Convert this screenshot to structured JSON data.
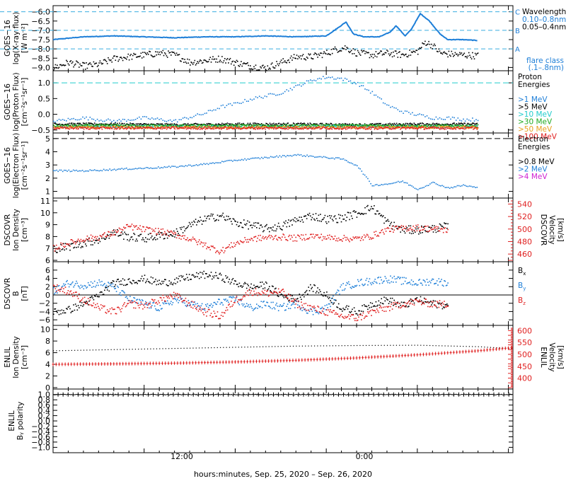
{
  "colors": {
    "frame": "#000000",
    "blue": "#1e7fd8",
    "lightblue": "#3aaee0",
    "cyan": "#22cccc",
    "green": "#22aa22",
    "orange": "#e8a020",
    "red": "#e02020",
    "magenta": "#d020d0",
    "black": "#000000"
  },
  "xaxis": {
    "tick_labels": [
      "12:00",
      "0:00"
    ],
    "title": "hours:minutes, Sep. 25, 2020 – Sep. 26, 2020"
  },
  "chart_data": [
    {
      "type": "line",
      "id": "goes-xray",
      "ylabel": [
        "GOES−16",
        "log(X-ray flux)",
        "[W m⁻²]"
      ],
      "ylim": [
        -9.1,
        -5.9
      ],
      "yticks": [
        -9.0,
        -8.5,
        -8.0,
        -7.5,
        -7.0,
        -6.5,
        -6.0
      ],
      "ytick_labels": [
        "−9.0",
        "−8.5",
        "−8.0",
        "−7.5",
        "−7.0",
        "−6.5",
        "−6.0"
      ],
      "flare_levels": [
        {
          "label": "C",
          "value": -6.0
        },
        {
          "label": "B",
          "value": -7.0
        },
        {
          "label": "A",
          "value": -8.0
        }
      ],
      "legend": {
        "title": "Wavelength",
        "entries": [
          {
            "label": "0.10–0.8nm",
            "color": "blue"
          },
          {
            "label": "0.05–0.4nm",
            "color": "black"
          }
        ],
        "note": [
          "flare class",
          "(.1–.8nm)"
        ]
      },
      "series": [
        {
          "name": "0.10–0.8nm",
          "color": "blue",
          "x": [
            0,
            2,
            4,
            6,
            8,
            10,
            12,
            14,
            16,
            18,
            18.8,
            19.3,
            19.8,
            20.5,
            21.5,
            22.2,
            22.6,
            23.2,
            23.6,
            24.2,
            24.8,
            25.5,
            26,
            27,
            28
          ],
          "y": [
            -7.5,
            -7.35,
            -7.3,
            -7.35,
            -7.4,
            -7.35,
            -7.35,
            -7.3,
            -7.35,
            -7.3,
            -6.85,
            -6.55,
            -7.2,
            -7.35,
            -7.35,
            -7.1,
            -6.75,
            -7.3,
            -6.95,
            -6.1,
            -6.5,
            -7.2,
            -7.5,
            -7.5,
            -7.55
          ]
        },
        {
          "name": "0.05–0.4nm",
          "color": "black",
          "x": [
            0,
            1,
            2,
            3,
            4,
            5,
            6,
            7,
            8,
            9,
            10,
            11,
            12,
            13,
            14,
            15,
            16,
            17,
            18,
            18.6,
            19.2,
            20,
            21,
            22,
            23,
            24,
            24.5,
            25,
            25.5,
            26,
            27,
            28
          ],
          "y": [
            -9.0,
            -8.7,
            -8.9,
            -8.8,
            -8.5,
            -8.4,
            -8.3,
            -8.2,
            -8.3,
            -8.7,
            -8.6,
            -8.5,
            -8.7,
            -8.9,
            -9.0,
            -8.7,
            -8.4,
            -8.4,
            -8.2,
            -8.0,
            -7.9,
            -8.2,
            -8.3,
            -8.2,
            -8.3,
            -8.1,
            -7.6,
            -7.8,
            -8.2,
            -8.25,
            -8.3,
            -8.35
          ]
        }
      ]
    },
    {
      "type": "scatter",
      "id": "goes-proton",
      "ylabel": [
        "GOES−16",
        "log(Proton Flux)",
        "[cm⁻²s⁻¹sr⁻¹]"
      ],
      "ylim": [
        -0.55,
        1.25
      ],
      "yticks": [
        -0.5,
        0.0,
        0.5,
        1.0
      ],
      "ytick_labels": [
        "−0.5",
        "0.0",
        "0.5",
        "1.0"
      ],
      "reference_line": 1.0,
      "legend": {
        "title": [
          "Proton",
          "Energies"
        ],
        "entries": [
          {
            "label": ">1 MeV",
            "color": "blue"
          },
          {
            "label": ">5 MeV",
            "color": "black"
          },
          {
            "label": ">10 MeV",
            "color": "cyan"
          },
          {
            "label": ">30 MeV",
            "color": "green"
          },
          {
            "label": ">50 MeV",
            "color": "orange"
          },
          {
            "label": ">100 MeV",
            "color": "red"
          }
        ]
      },
      "series": [
        {
          "name": ">1 MeV",
          "color": "blue",
          "x": [
            0,
            2,
            4,
            6,
            8,
            10,
            11,
            12,
            13,
            14,
            15,
            16,
            17,
            18,
            19,
            20,
            21,
            22,
            23,
            24,
            25,
            26,
            27,
            28
          ],
          "y": [
            -0.2,
            -0.1,
            -0.2,
            -0.1,
            -0.2,
            0.05,
            0.25,
            0.35,
            0.5,
            0.6,
            0.7,
            0.9,
            1.1,
            1.2,
            1.15,
            1.0,
            0.7,
            0.3,
            0.1,
            0.0,
            -0.1,
            -0.1,
            -0.15,
            -0.15
          ]
        },
        {
          "name": ">5 MeV",
          "color": "black",
          "x": [
            0,
            4,
            8,
            12,
            16,
            20,
            24,
            28
          ],
          "y": [
            -0.3,
            -0.3,
            -0.32,
            -0.3,
            -0.3,
            -0.32,
            -0.3,
            -0.3
          ]
        },
        {
          "name": ">10 MeV",
          "color": "cyan",
          "x": [
            0,
            4,
            8,
            12,
            16,
            20,
            24,
            28
          ],
          "y": [
            -0.38,
            -0.38,
            -0.36,
            -0.38,
            -0.38,
            -0.36,
            -0.38,
            -0.38
          ]
        },
        {
          "name": ">30 MeV",
          "color": "green",
          "x": [
            0,
            4,
            8,
            12,
            16,
            20,
            24,
            28
          ],
          "y": [
            -0.35,
            -0.34,
            -0.35,
            -0.34,
            -0.35,
            -0.34,
            -0.35,
            -0.35
          ]
        },
        {
          "name": ">50 MeV",
          "color": "orange",
          "x": [
            0,
            4,
            8,
            12,
            16,
            20,
            24,
            28
          ],
          "y": [
            -0.4,
            -0.4,
            -0.4,
            -0.4,
            -0.4,
            -0.4,
            -0.4,
            -0.4
          ]
        },
        {
          "name": ">100 MeV",
          "color": "red",
          "x": [
            0,
            4,
            8,
            12,
            16,
            20,
            24,
            28
          ],
          "y": [
            -0.42,
            -0.42,
            -0.42,
            -0.42,
            -0.42,
            -0.42,
            -0.42,
            -0.42
          ]
        }
      ]
    },
    {
      "type": "scatter",
      "id": "goes-electron",
      "ylabel": [
        "GOES−16",
        "log(Electron Flux)",
        "[cm⁻²s⁻¹sr⁻¹]"
      ],
      "ylim": [
        0.6,
        5.1
      ],
      "yticks": [
        1,
        2,
        3,
        4,
        5
      ],
      "ytick_labels": [
        "1",
        "2",
        "3",
        "4",
        "5"
      ],
      "reference_line": 5.0,
      "legend": {
        "title": [
          "Electron",
          "Energies"
        ],
        "entries": [
          {
            "label": ">0.8 MeV",
            "color": "black"
          },
          {
            "label": ">2 MeV",
            "color": "blue"
          },
          {
            "label": ">4 MeV",
            "color": "magenta"
          }
        ]
      },
      "series": [
        {
          "name": ">2 MeV",
          "color": "blue",
          "x": [
            0,
            2,
            4,
            6,
            8,
            10,
            12,
            14,
            16,
            18,
            19,
            20,
            21,
            22,
            23,
            24,
            25,
            26,
            27,
            28
          ],
          "y": [
            2.6,
            2.6,
            2.7,
            2.8,
            2.9,
            3.1,
            3.4,
            3.6,
            3.8,
            3.6,
            3.5,
            3.0,
            1.5,
            1.6,
            1.8,
            1.2,
            1.7,
            1.3,
            1.5,
            1.3
          ]
        }
      ]
    },
    {
      "type": "scatter",
      "id": "dscovr-plasma",
      "ylabel": [
        "DSCOVR",
        "Ion Density",
        "[cm⁻³]"
      ],
      "ylabel_right": [
        "DSCOVR",
        "Velocity",
        "[km/s]"
      ],
      "ylim": [
        6,
        11
      ],
      "yticks": [
        6,
        7,
        8,
        9,
        10,
        11
      ],
      "ytick_labels": [
        "6",
        "7",
        "8",
        "9",
        "10",
        "11"
      ],
      "ylim_right": [
        450,
        545
      ],
      "yticks_right": [
        460,
        480,
        500,
        520,
        540
      ],
      "ytick_labels_right": [
        "460",
        "480",
        "500",
        "520",
        "540"
      ],
      "series": [
        {
          "name": "density",
          "color": "black",
          "axis": "left",
          "x": [
            0,
            1,
            2,
            3,
            4,
            5,
            6,
            7,
            8,
            9,
            10,
            11,
            12,
            13,
            14,
            15,
            16,
            17,
            18,
            19,
            20,
            21,
            22,
            23,
            24,
            25,
            26
          ],
          "y": [
            7.0,
            7.2,
            7.5,
            7.8,
            8.4,
            8.0,
            7.9,
            8.1,
            8.3,
            9.0,
            9.5,
            9.8,
            9.2,
            9.0,
            8.7,
            8.9,
            9.4,
            9.8,
            9.5,
            9.6,
            10.0,
            10.5,
            9.2,
            8.6,
            8.6,
            8.7,
            8.9
          ]
        },
        {
          "name": "velocity",
          "color": "red",
          "axis": "right",
          "x": [
            0,
            1,
            2,
            3,
            4,
            5,
            6,
            7,
            8,
            9,
            10,
            11,
            12,
            13,
            14,
            15,
            16,
            17,
            18,
            19,
            20,
            21,
            22,
            23,
            24,
            25,
            26
          ],
          "y": [
            470,
            478,
            485,
            488,
            495,
            505,
            500,
            497,
            492,
            485,
            475,
            465,
            478,
            485,
            487,
            488,
            486,
            490,
            487,
            486,
            485,
            490,
            500,
            502,
            503,
            501,
            499
          ]
        }
      ]
    },
    {
      "type": "scatter",
      "id": "dscovr-mag",
      "ylabel": [
        "DSCOVR",
        "B",
        "[nT]"
      ],
      "ylim": [
        -7,
        7
      ],
      "yticks": [
        -6,
        -4,
        -2,
        0,
        2,
        4,
        6
      ],
      "ytick_labels": [
        "−6",
        "−4",
        "−2",
        "0",
        "2",
        "4",
        "6"
      ],
      "legend": {
        "entries": [
          {
            "label": "B",
            "sub": "x",
            "color": "black"
          },
          {
            "label": "B",
            "sub": "y",
            "color": "blue"
          },
          {
            "label": "B",
            "sub": "z",
            "color": "red"
          }
        ]
      },
      "series": [
        {
          "name": "Bx",
          "color": "black",
          "x": [
            0,
            1,
            2,
            3,
            4,
            5,
            6,
            7,
            8,
            9,
            10,
            11,
            12,
            13,
            14,
            15,
            16,
            17,
            18,
            19,
            20,
            21,
            22,
            23,
            24,
            25,
            26
          ],
          "y": [
            -4,
            -3.5,
            -2,
            0,
            3,
            3.5,
            4,
            3,
            3.5,
            4.5,
            5,
            4.5,
            3,
            2,
            2.5,
            0,
            -1,
            2,
            0,
            -3,
            -4,
            -2,
            -1,
            -2.5,
            -1,
            -2,
            -2.5
          ]
        },
        {
          "name": "By",
          "color": "blue",
          "x": [
            0,
            1,
            2,
            3,
            4,
            5,
            6,
            7,
            8,
            9,
            10,
            11,
            12,
            13,
            14,
            15,
            16,
            17,
            18,
            19,
            20,
            21,
            22,
            23,
            24,
            25,
            26
          ],
          "y": [
            1,
            3,
            2.5,
            3,
            2,
            -1,
            -2,
            -3,
            -1,
            -2,
            -3,
            -1.5,
            -1,
            -3,
            -2,
            -3,
            -2,
            -4,
            -3,
            2,
            3,
            3.5,
            4,
            3.5,
            3,
            3.5,
            3
          ]
        },
        {
          "name": "Bz",
          "color": "red",
          "x": [
            0,
            1,
            2,
            3,
            4,
            5,
            6,
            7,
            8,
            9,
            10,
            11,
            12,
            13,
            14,
            15,
            16,
            17,
            18,
            19,
            20,
            21,
            22,
            23,
            24,
            25,
            26
          ],
          "y": [
            2,
            1,
            -1,
            -3,
            -4,
            -2,
            -2.5,
            -1,
            0,
            -2,
            -4,
            -5,
            -1,
            1,
            0.5,
            1,
            -2,
            -3,
            -4,
            -5,
            -5.5,
            -4,
            -3,
            -2,
            -1.5,
            -2,
            -2.2
          ]
        }
      ]
    },
    {
      "type": "line",
      "id": "enlil-plasma",
      "ylabel": [
        "ENLIL",
        "Ion Density",
        "[cm⁻³]"
      ],
      "ylabel_right": [
        "ENLIL",
        "Velocity",
        "[km/s]"
      ],
      "ylim": [
        0,
        10.2
      ],
      "yticks": [
        0,
        2,
        4,
        6,
        8,
        10
      ],
      "ytick_labels": [
        "0",
        "2",
        "4",
        "6",
        "8",
        "10"
      ],
      "ylim_right": [
        360,
        610
      ],
      "yticks_right": [
        400,
        450,
        500,
        550,
        600
      ],
      "ytick_labels_right": [
        "400",
        "450",
        "500",
        "550",
        "600"
      ],
      "series": [
        {
          "name": "density",
          "color": "black",
          "axis": "left",
          "x": [
            0,
            4,
            8,
            12,
            16,
            20,
            24,
            28,
            32
          ],
          "y": [
            6.4,
            6.6,
            6.8,
            7.0,
            7.2,
            7.3,
            7.35,
            7.1,
            6.5
          ]
        },
        {
          "name": "velocity",
          "color": "red",
          "axis": "right",
          "x": [
            0,
            4,
            8,
            12,
            16,
            20,
            24,
            28,
            32
          ],
          "y": [
            458,
            460,
            463,
            468,
            475,
            485,
            498,
            515,
            538
          ]
        }
      ]
    },
    {
      "type": "line",
      "id": "enlil-polarity",
      "ylabel": [
        "ENLIL",
        "Bᵧ polarity"
      ],
      "ylim": [
        -1.15,
        1.1
      ],
      "yticks": [
        -1.0,
        -0.8,
        -0.6,
        -0.4,
        -0.2,
        0.0,
        0.2,
        0.4,
        0.6,
        0.8,
        1.0
      ],
      "ytick_labels": [
        "−1.0",
        "−0.8",
        "−0.6",
        "−0.4",
        "−0.2",
        "0.0",
        "0.2",
        "0.4",
        "0.6",
        "0.8",
        "1.0"
      ],
      "series": [
        {
          "name": "polarity",
          "color": "black",
          "x": [
            0,
            32
          ],
          "y": [
            1.0,
            1.0
          ]
        }
      ]
    }
  ]
}
